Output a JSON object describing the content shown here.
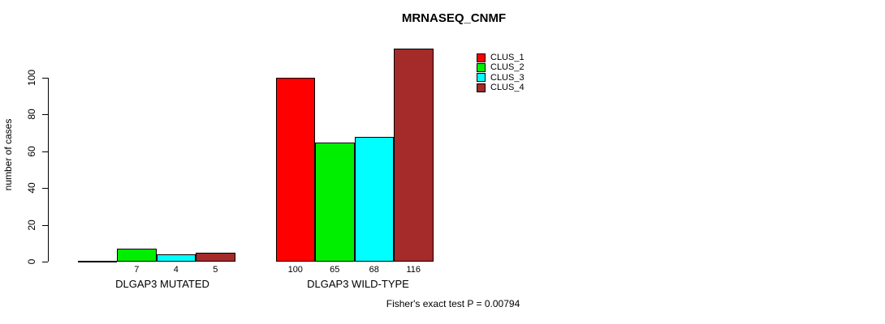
{
  "chart_data": {
    "type": "bar",
    "title": "MRNASEQ_CNMF",
    "ylabel": "number of cases",
    "xlabel": "",
    "categories": [
      "DLGAP3 MUTATED",
      "DLGAP3 WILD-TYPE"
    ],
    "series": [
      {
        "name": "CLUS_1",
        "color": "#FF0000",
        "values": [
          0,
          100
        ]
      },
      {
        "name": "CLUS_2",
        "color": "#00EE00",
        "values": [
          7,
          65
        ]
      },
      {
        "name": "CLUS_3",
        "color": "#00FFFF",
        "values": [
          4,
          68
        ]
      },
      {
        "name": "CLUS_4",
        "color": "#A52A2A",
        "values": [
          5,
          116
        ]
      }
    ],
    "bar_value_labels": [
      [
        "",
        "7",
        "4",
        "5"
      ],
      [
        "100",
        "65",
        "68",
        "116"
      ]
    ],
    "yticks": [
      0,
      20,
      40,
      60,
      80,
      100
    ],
    "ylim": [
      0,
      116
    ],
    "grid": false,
    "legend_position": "top-right",
    "annotation": "Fisher's exact test P = 0.00794"
  }
}
